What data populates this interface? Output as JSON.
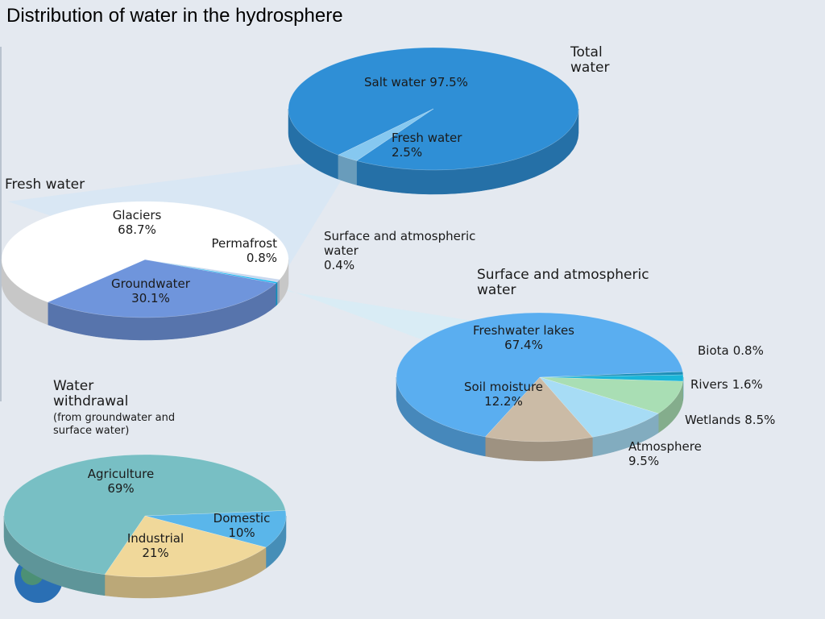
{
  "title": "Distribution of water in the hydrosphere",
  "chart_data": [
    {
      "type": "pie",
      "title": "Total water",
      "categories": [
        "Salt water",
        "Fresh water"
      ],
      "values": [
        97.5,
        2.5
      ],
      "value_labels": [
        "97.5%",
        "2.5%"
      ],
      "colors": [
        "#2f8fd6",
        "#86c8f0"
      ]
    },
    {
      "type": "pie",
      "title": "Fresh water",
      "categories": [
        "Permafrost",
        "Surface and atmospheric water",
        "Groundwater",
        "Glaciers"
      ],
      "values": [
        0.8,
        0.4,
        30.1,
        68.7
      ],
      "value_labels": [
        "0.8%",
        "0.4%",
        "30.1%",
        "68.7%"
      ],
      "colors": [
        "#c9d8ee",
        "#15b6f0",
        "#6f95dc",
        "#ffffff"
      ]
    },
    {
      "type": "pie",
      "title": "Surface and atmospheric water",
      "categories": [
        "Biota",
        "Rivers",
        "Wetlands",
        "Atmosphere",
        "Soil moisture",
        "Freshwater lakes"
      ],
      "values": [
        0.8,
        1.6,
        8.5,
        9.5,
        12.2,
        67.4
      ],
      "value_labels": [
        "0.8%",
        "1.6%",
        "8.5%",
        "9.5%",
        "12.2%",
        "67.4%"
      ],
      "colors": [
        "#1d8fb8",
        "#1ab5d8",
        "#a9deb4",
        "#a7dcf5",
        "#cbbba6",
        "#5aaef0"
      ]
    },
    {
      "type": "pie",
      "title": "Water withdrawal",
      "subtitle": "(from groundwater and surface water)",
      "categories": [
        "Domestic",
        "Industrial",
        "Agriculture"
      ],
      "values": [
        10,
        21,
        69
      ],
      "value_labels": [
        "10%",
        "21%",
        "69%"
      ],
      "colors": [
        "#5ab6ea",
        "#f0d89a",
        "#78bfc4"
      ]
    }
  ]
}
